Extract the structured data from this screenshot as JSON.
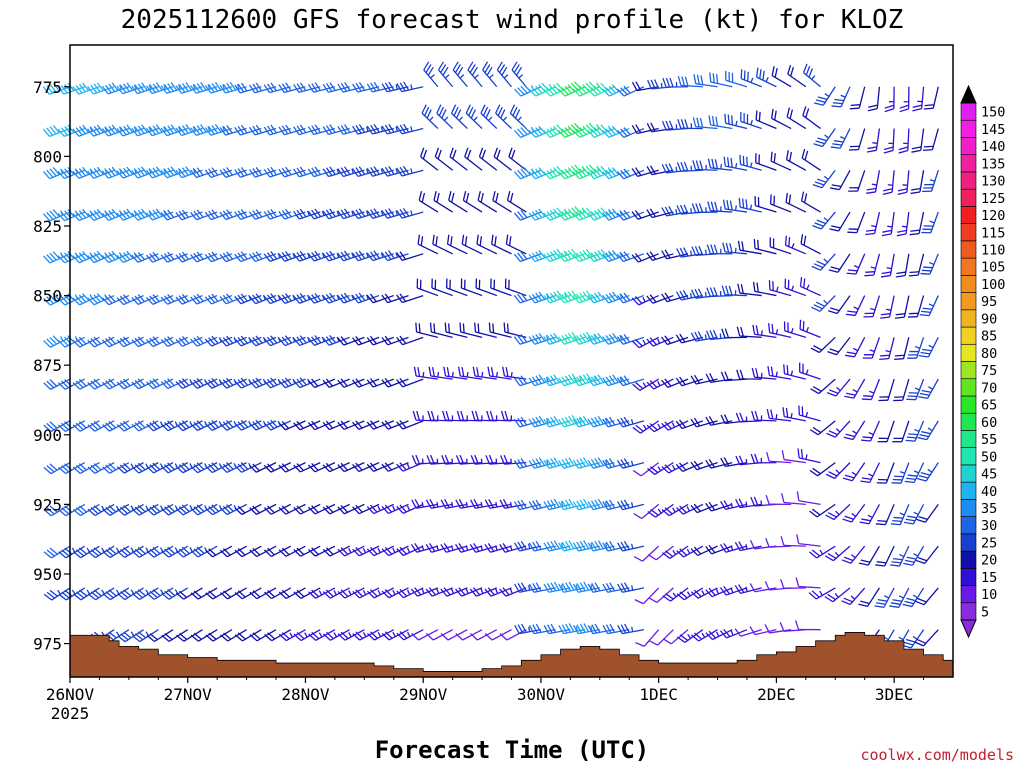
{
  "chart_data": {
    "type": "wind-barb-profile",
    "title": "2025112600 GFS forecast wind profile (kt) for KLOZ",
    "xlabel": "Forecast Time (UTC)",
    "ylabel": "",
    "credit": "coolwx.com/models",
    "x_ticks": [
      {
        "label": "26NOV",
        "sublabel": "2025",
        "hour": 0
      },
      {
        "label": "27NOV",
        "sublabel": "",
        "hour": 24
      },
      {
        "label": "28NOV",
        "sublabel": "",
        "hour": 48
      },
      {
        "label": "29NOV",
        "sublabel": "",
        "hour": 72
      },
      {
        "label": "30NOV",
        "sublabel": "",
        "hour": 96
      },
      {
        "label": "1DEC",
        "sublabel": "",
        "hour": 120
      },
      {
        "label": "2DEC",
        "sublabel": "",
        "hour": 144
      },
      {
        "label": "3DEC",
        "sublabel": "",
        "hour": 168
      }
    ],
    "x_range_hours": [
      0,
      180
    ],
    "y_ticks": [
      775,
      800,
      825,
      850,
      875,
      900,
      925,
      950,
      975
    ],
    "y_range_hpa": [
      760,
      987
    ],
    "barb_levels_hpa": [
      775,
      790,
      805,
      820,
      835,
      850,
      865,
      880,
      895,
      910,
      925,
      940,
      955,
      970
    ],
    "barb_time_step_hours": 3,
    "colorbar": {
      "labels": [
        5,
        10,
        15,
        20,
        25,
        30,
        35,
        40,
        45,
        50,
        55,
        60,
        65,
        70,
        75,
        80,
        85,
        90,
        95,
        100,
        105,
        110,
        115,
        120,
        125,
        130,
        135,
        140,
        145,
        150
      ],
      "colors": [
        "#8a2be2",
        "#6a1ae8",
        "#3010d8",
        "#1010a8",
        "#1840d0",
        "#1e64e6",
        "#1e8cf0",
        "#1eb4f0",
        "#20d2d2",
        "#20e6b4",
        "#20e68c",
        "#20e650",
        "#28e628",
        "#60e620",
        "#a0e620",
        "#e6e620",
        "#f0d020",
        "#f0b420",
        "#f09b20",
        "#f08c20",
        "#f07820",
        "#f05a20",
        "#f03c20",
        "#f02020",
        "#f0205a",
        "#f02080",
        "#f020a0",
        "#f020c8",
        "#f020e6",
        "#e020f0"
      ]
    },
    "terrain_profile": [
      {
        "hour": 0,
        "hpa": 972
      },
      {
        "hour": 6,
        "hpa": 972
      },
      {
        "hour": 8,
        "hpa": 974
      },
      {
        "hour": 10,
        "hpa": 976
      },
      {
        "hour": 14,
        "hpa": 977
      },
      {
        "hour": 18,
        "hpa": 979
      },
      {
        "hour": 24,
        "hpa": 980
      },
      {
        "hour": 30,
        "hpa": 981
      },
      {
        "hour": 36,
        "hpa": 981
      },
      {
        "hour": 42,
        "hpa": 982
      },
      {
        "hour": 48,
        "hpa": 982
      },
      {
        "hour": 56,
        "hpa": 982
      },
      {
        "hour": 62,
        "hpa": 983
      },
      {
        "hour": 66,
        "hpa": 984
      },
      {
        "hour": 72,
        "hpa": 985
      },
      {
        "hour": 80,
        "hpa": 985
      },
      {
        "hour": 84,
        "hpa": 984
      },
      {
        "hour": 88,
        "hpa": 983
      },
      {
        "hour": 92,
        "hpa": 981
      },
      {
        "hour": 96,
        "hpa": 979
      },
      {
        "hour": 100,
        "hpa": 977
      },
      {
        "hour": 104,
        "hpa": 976
      },
      {
        "hour": 108,
        "hpa": 977
      },
      {
        "hour": 112,
        "hpa": 979
      },
      {
        "hour": 116,
        "hpa": 981
      },
      {
        "hour": 120,
        "hpa": 982
      },
      {
        "hour": 132,
        "hpa": 982
      },
      {
        "hour": 136,
        "hpa": 981
      },
      {
        "hour": 140,
        "hpa": 979
      },
      {
        "hour": 144,
        "hpa": 978
      },
      {
        "hour": 148,
        "hpa": 976
      },
      {
        "hour": 152,
        "hpa": 974
      },
      {
        "hour": 156,
        "hpa": 972
      },
      {
        "hour": 158,
        "hpa": 971
      },
      {
        "hour": 162,
        "hpa": 972
      },
      {
        "hour": 166,
        "hpa": 974
      },
      {
        "hour": 170,
        "hpa": 977
      },
      {
        "hour": 174,
        "hpa": 979
      },
      {
        "hour": 178,
        "hpa": 981
      },
      {
        "hour": 180,
        "hpa": 982
      }
    ],
    "terrain_color": "#a0522d",
    "grid": false,
    "legend": "colorbar-right"
  }
}
